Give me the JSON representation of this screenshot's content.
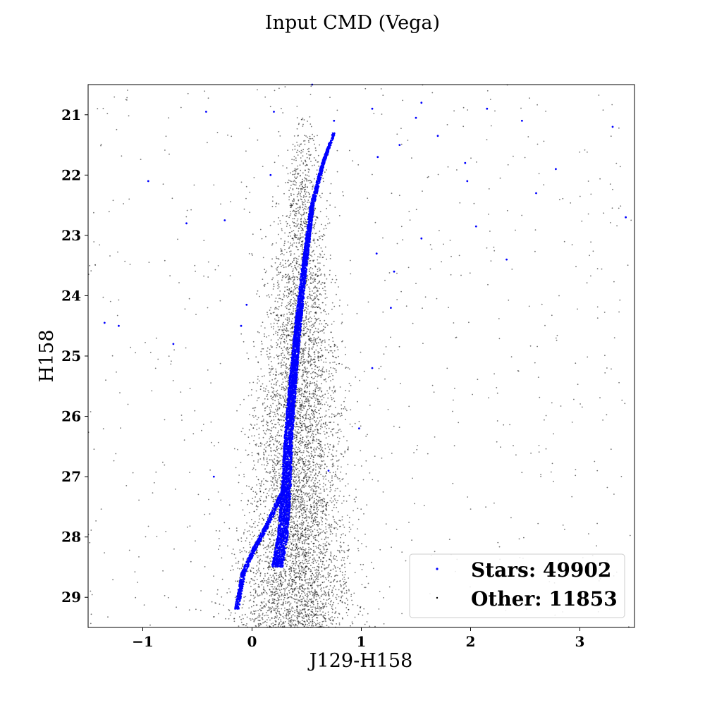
{
  "chart_data": {
    "type": "scatter",
    "title": "Input CMD (Vega)",
    "xlabel": "J129-H158",
    "ylabel": "H158",
    "xlim": [
      -1.5,
      3.5
    ],
    "ylim": [
      29.5,
      20.5
    ],
    "y_inverted": true,
    "grid": false,
    "legend_position": "lower right",
    "xticks": [
      -1,
      0,
      1,
      2,
      3
    ],
    "xtick_labels": [
      "−1",
      "0",
      "1",
      "2",
      "3"
    ],
    "yticks": [
      21,
      22,
      23,
      24,
      25,
      26,
      27,
      28,
      29
    ],
    "ytick_labels": [
      "21",
      "22",
      "23",
      "24",
      "25",
      "26",
      "27",
      "28",
      "29"
    ],
    "series": [
      {
        "name": "Stars",
        "count": 49902,
        "color": "#0000ff",
        "legend_label": "Stars: 49902",
        "main_sequence": [
          [
            0.23,
            28.5
          ],
          [
            0.28,
            28.0
          ],
          [
            0.31,
            27.3
          ],
          [
            0.33,
            26.5
          ],
          [
            0.37,
            25.5
          ],
          [
            0.42,
            24.5
          ],
          [
            0.48,
            23.5
          ],
          [
            0.55,
            22.5
          ],
          [
            0.65,
            21.8
          ],
          [
            0.75,
            21.3
          ]
        ],
        "low_mass_branch": [
          [
            -0.14,
            29.2
          ],
          [
            -0.08,
            28.6
          ],
          [
            0.02,
            28.2
          ],
          [
            0.14,
            27.8
          ],
          [
            0.24,
            27.4
          ],
          [
            0.3,
            27.2
          ]
        ],
        "outliers": [
          [
            -1.35,
            24.45
          ],
          [
            -1.22,
            24.5
          ],
          [
            -0.95,
            22.1
          ],
          [
            -0.42,
            20.95
          ],
          [
            -0.6,
            22.8
          ],
          [
            -0.25,
            22.75
          ],
          [
            -0.05,
            24.15
          ],
          [
            0.17,
            22
          ],
          [
            0.2,
            20.95
          ],
          [
            0.55,
            20.5
          ],
          [
            0.75,
            21.1
          ],
          [
            1.1,
            20.9
          ],
          [
            1.15,
            21.7
          ],
          [
            1.35,
            21.5
          ],
          [
            1.55,
            20.8
          ],
          [
            1.5,
            21.05
          ],
          [
            1.7,
            21.35
          ],
          [
            1.95,
            21.8
          ],
          [
            1.97,
            22.1
          ],
          [
            2.15,
            20.9
          ],
          [
            2.47,
            21.1
          ],
          [
            2.6,
            22.3
          ],
          [
            2.78,
            21.9
          ],
          [
            3.3,
            21.2
          ],
          [
            3.42,
            22.7
          ],
          [
            2.33,
            23.4
          ],
          [
            2.05,
            22.85
          ],
          [
            1.55,
            23.05
          ],
          [
            1.14,
            23.3
          ],
          [
            1.3,
            23.6
          ],
          [
            1.27,
            24.2
          ],
          [
            1.1,
            25.2
          ],
          [
            0.98,
            26.2
          ],
          [
            0.7,
            26.9
          ],
          [
            -0.1,
            24.5
          ],
          [
            -0.35,
            27
          ],
          [
            -0.72,
            24.8
          ]
        ]
      },
      {
        "name": "Other",
        "count": 11853,
        "color": "#000000",
        "legend_label": "Other: 11853"
      }
    ]
  }
}
